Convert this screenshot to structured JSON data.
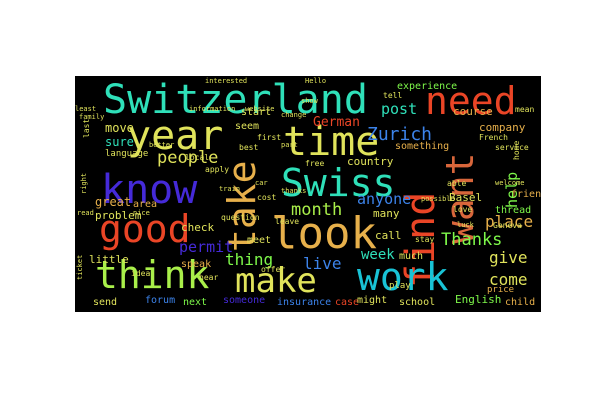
{
  "wordcloud": {
    "palette": [
      "#2fe0b9",
      "#ea4526",
      "#e0e35b",
      "#452ad8",
      "#3c83ea",
      "#7ef84a",
      "#e7b04b",
      "#19c3d6",
      "#a9ef4a",
      "#d8663b"
    ],
    "words": [
      {
        "text": "Switzerland",
        "color": "#2fe0b9"
      },
      {
        "text": "need",
        "color": "#ea4526"
      },
      {
        "text": "year",
        "color": "#e0e35b"
      },
      {
        "text": "time",
        "color": "#e0e35b"
      },
      {
        "text": "take",
        "color": "#e7b04b"
      },
      {
        "text": "find",
        "color": "#ea4526"
      },
      {
        "text": "want",
        "color": "#d8663b"
      },
      {
        "text": "know",
        "color": "#452ad8"
      },
      {
        "text": "Swiss",
        "color": "#2fe0b9"
      },
      {
        "text": "good",
        "color": "#ea4526"
      },
      {
        "text": "look",
        "color": "#e7b04b"
      },
      {
        "text": "think",
        "color": "#a9ef4a"
      },
      {
        "text": "make",
        "color": "#e0e35b"
      },
      {
        "text": "work",
        "color": "#19c3d6"
      },
      {
        "text": "people",
        "color": "#e0e35b"
      },
      {
        "text": "Zurich",
        "color": "#3c83ea"
      },
      {
        "text": "post",
        "color": "#2fe0b9"
      },
      {
        "text": "German",
        "color": "#ea4526"
      },
      {
        "text": "month",
        "color": "#a9ef4a"
      },
      {
        "text": "Thanks",
        "color": "#7ef84a"
      },
      {
        "text": "live",
        "color": "#3c83ea"
      },
      {
        "text": "thing",
        "color": "#7ef84a"
      },
      {
        "text": "permit",
        "color": "#452ad8"
      },
      {
        "text": "anyone",
        "color": "#3c83ea"
      },
      {
        "text": "place",
        "color": "#e7b04b"
      },
      {
        "text": "give",
        "color": "#e0e35b"
      },
      {
        "text": "come",
        "color": "#e0e35b"
      },
      {
        "text": "help",
        "color": "#7ef84a"
      },
      {
        "text": "week",
        "color": "#2fe0b9"
      },
      {
        "text": "move",
        "color": "#e0e35b"
      },
      {
        "text": "sure",
        "color": "#2fe0b9"
      },
      {
        "text": "great",
        "color": "#e7b04b"
      },
      {
        "text": "problem",
        "color": "#e0e35b"
      },
      {
        "text": "company",
        "color": "#e7b04b"
      },
      {
        "text": "course",
        "color": "#e7b04b"
      },
      {
        "text": "experience",
        "color": "#7ef84a"
      },
      {
        "text": "country",
        "color": "#e0e35b"
      },
      {
        "text": "something",
        "color": "#e7b04b"
      },
      {
        "text": "many",
        "color": "#e0e35b"
      },
      {
        "text": "call",
        "color": "#e0e35b"
      },
      {
        "text": "Basel",
        "color": "#e0e35b"
      },
      {
        "text": "friend",
        "color": "#e7b04b"
      },
      {
        "text": "thread",
        "color": "#7ef84a"
      },
      {
        "text": "start",
        "color": "#e0e35b"
      },
      {
        "text": "seem",
        "color": "#e0e35b"
      },
      {
        "text": "check",
        "color": "#e0e35b"
      },
      {
        "text": "area",
        "color": "#e7b04b"
      },
      {
        "text": "little",
        "color": "#e0e35b"
      },
      {
        "text": "speak",
        "color": "#e7b04b"
      },
      {
        "text": "meet",
        "color": "#e0e35b"
      },
      {
        "text": "send",
        "color": "#e0e35b"
      },
      {
        "text": "forum",
        "color": "#3c83ea"
      },
      {
        "text": "next",
        "color": "#7ef84a"
      },
      {
        "text": "someone",
        "color": "#452ad8"
      },
      {
        "text": "insurance",
        "color": "#3c83ea"
      },
      {
        "text": "case",
        "color": "#ea4526"
      },
      {
        "text": "might",
        "color": "#e0e35b"
      },
      {
        "text": "school",
        "color": "#e0e35b"
      },
      {
        "text": "English",
        "color": "#7ef84a"
      },
      {
        "text": "child",
        "color": "#e7b04b"
      },
      {
        "text": "much",
        "color": "#e0e35b"
      },
      {
        "text": "play",
        "color": "#e0e35b"
      },
      {
        "text": "price",
        "color": "#e7b04b"
      },
      {
        "text": "language",
        "color": "#e0e35b"
      },
      {
        "text": "family",
        "color": "#e0e35b"
      },
      {
        "text": "last",
        "color": "#e0e35b"
      },
      {
        "text": "first",
        "color": "#e0e35b"
      },
      {
        "text": "best",
        "color": "#e0e35b"
      },
      {
        "text": "cost",
        "color": "#e0e35b"
      },
      {
        "text": "leave",
        "color": "#e0e35b"
      },
      {
        "text": "question",
        "color": "#e0e35b"
      },
      {
        "text": "free",
        "color": "#e0e35b"
      },
      {
        "text": "offer",
        "color": "#e0e35b"
      },
      {
        "text": "idea",
        "color": "#e0e35b"
      },
      {
        "text": "hear",
        "color": "#e0e35b"
      },
      {
        "text": "local",
        "color": "#e0e35b"
      },
      {
        "text": "apply",
        "color": "#e0e35b"
      },
      {
        "text": "tell",
        "color": "#e0e35b"
      },
      {
        "text": "mean",
        "color": "#e0e35b"
      },
      {
        "text": "French",
        "color": "#e0e35b"
      },
      {
        "text": "service",
        "color": "#e0e35b"
      },
      {
        "text": "home",
        "color": "#e0e35b"
      },
      {
        "text": "welcome",
        "color": "#e0e35b"
      },
      {
        "text": "able",
        "color": "#e0e35b"
      },
      {
        "text": "love",
        "color": "#e0e35b"
      },
      {
        "text": "Geneva",
        "color": "#e0e35b"
      },
      {
        "text": "stay",
        "color": "#e0e35b"
      },
      {
        "text": "interested",
        "color": "#e0e35b"
      },
      {
        "text": "information",
        "color": "#e0e35b"
      },
      {
        "text": "website",
        "color": "#e0e35b"
      },
      {
        "text": "Hello",
        "color": "#e0e35b"
      },
      {
        "text": "show",
        "color": "#e0e35b"
      },
      {
        "text": "least",
        "color": "#e0e35b"
      },
      {
        "text": "better",
        "color": "#e0e35b"
      },
      {
        "text": "change",
        "color": "#e0e35b"
      },
      {
        "text": "part",
        "color": "#e0e35b"
      },
      {
        "text": "ticket",
        "color": "#e0e35b"
      },
      {
        "text": "right",
        "color": "#e0e35b"
      },
      {
        "text": "read",
        "color": "#e0e35b"
      },
      {
        "text": "nice",
        "color": "#e0e35b"
      },
      {
        "text": "train",
        "color": "#e0e35b"
      },
      {
        "text": "thanks",
        "color": "#e0e35b"
      },
      {
        "text": "luck",
        "color": "#e0e35b"
      },
      {
        "text": "possible",
        "color": "#e0e35b"
      },
      {
        "text": "car",
        "color": "#e0e35b"
      }
    ]
  }
}
